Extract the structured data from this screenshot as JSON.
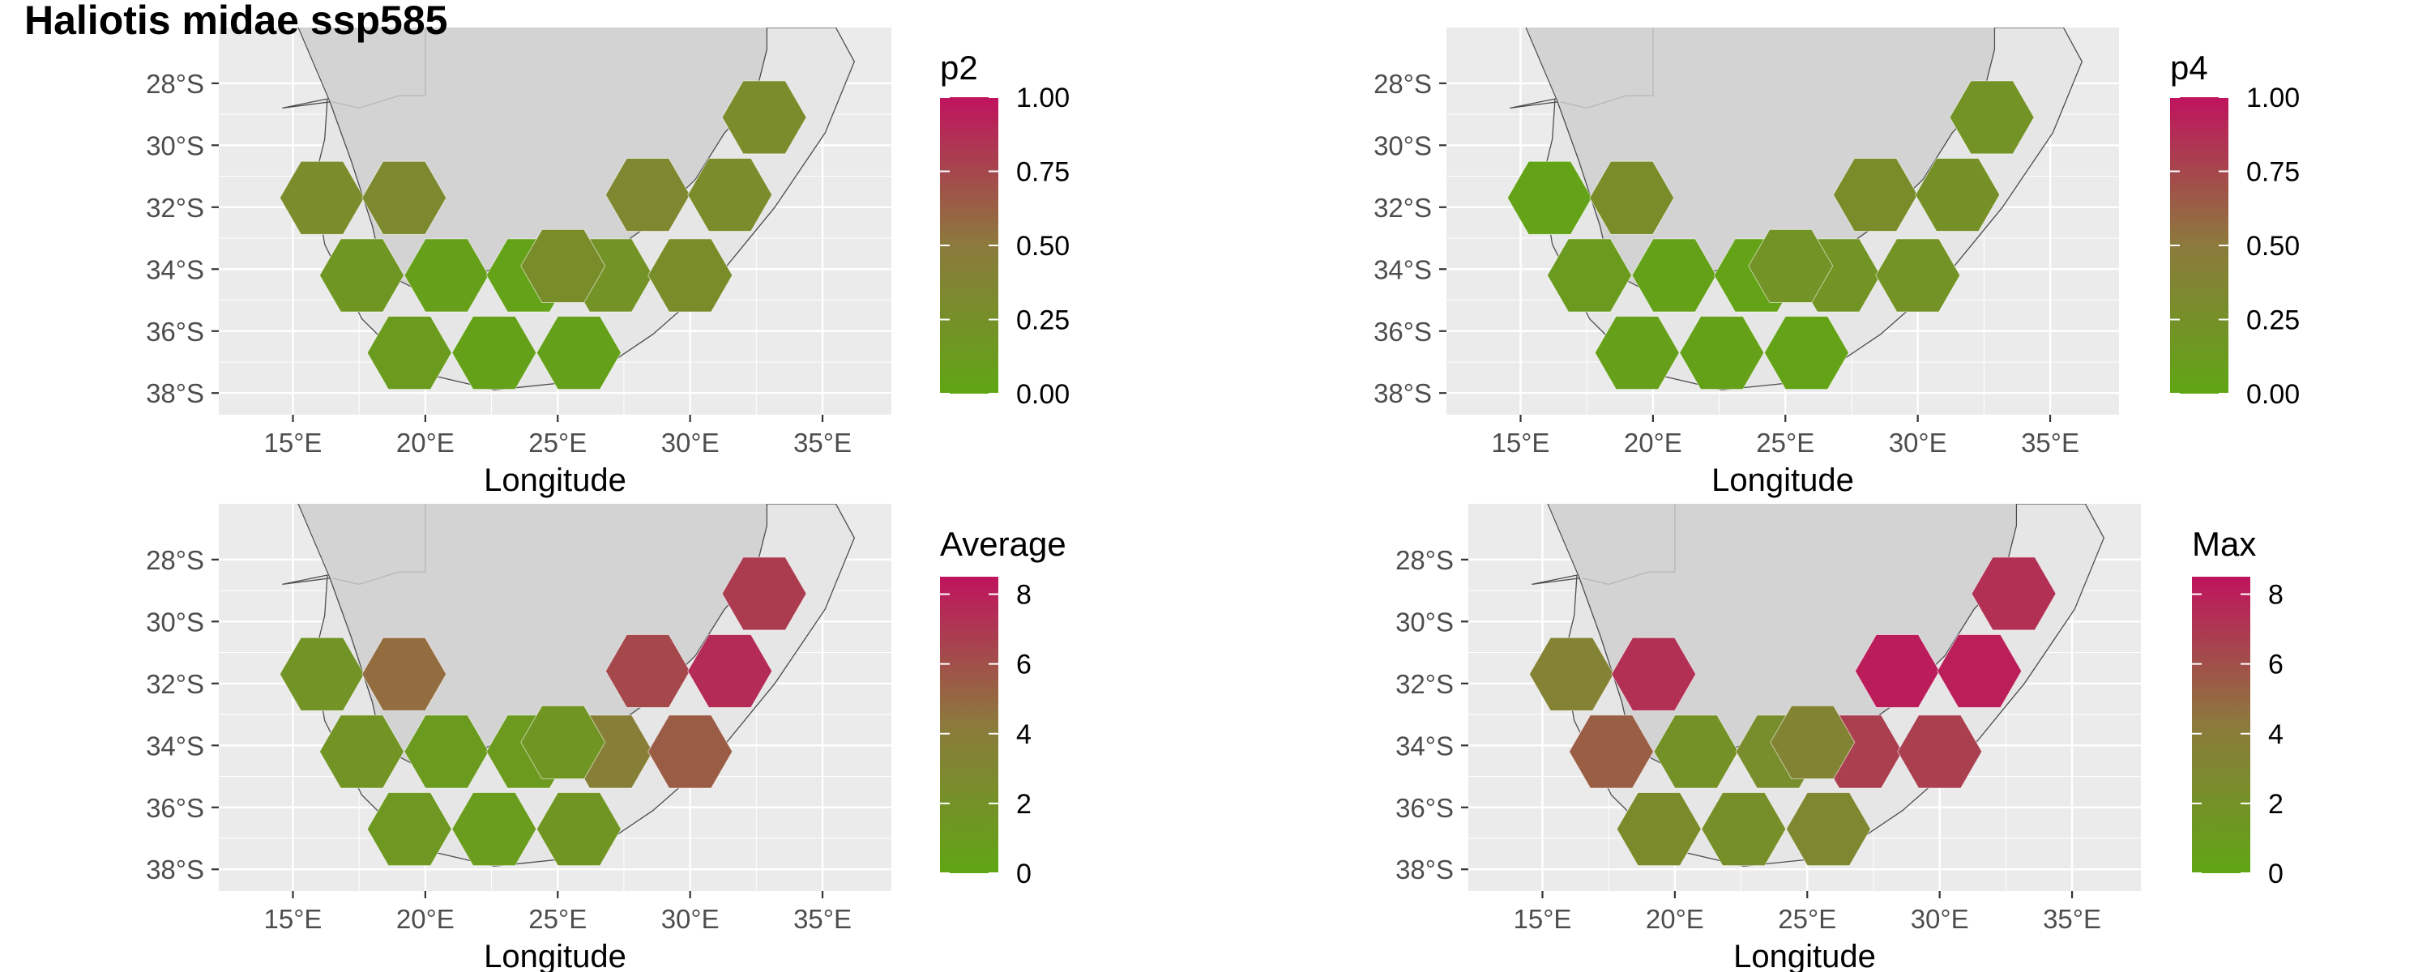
{
  "title": "Haliotis midae ssp585",
  "colors": {
    "low": "#5fa614",
    "mid": "#8c7a3c",
    "high": "#c0135e",
    "panel_bg": "#ebebeb",
    "grid": "#ffffff",
    "land": "#d3d3d3",
    "eez": "#e6e6e6",
    "outline": "#4d4d4d"
  },
  "panels": [
    {
      "id": "p2",
      "legend": {
        "title": "p2",
        "ticks": [
          "1.00",
          "0.75",
          "0.50",
          "0.25",
          "0.00"
        ],
        "max": 1
      },
      "values": [
        0.3,
        0.33,
        0.18,
        0.08,
        0.05,
        0.12,
        0.06,
        0.07,
        0.22,
        0.35,
        0.3,
        0.28,
        0.3,
        0.28
      ]
    },
    {
      "id": "p4",
      "legend": {
        "title": "p4",
        "ticks": [
          "1.00",
          "0.75",
          "0.50",
          "0.25",
          "0.00"
        ],
        "max": 1
      },
      "values": [
        0.05,
        0.28,
        0.12,
        0.06,
        0.05,
        0.08,
        0.06,
        0.05,
        0.2,
        0.28,
        0.25,
        0.22,
        0.22,
        0.22
      ]
    },
    {
      "id": "average",
      "legend": {
        "title": "Average",
        "ticks": [
          "8",
          "6",
          "4",
          "2",
          "0"
        ],
        "max": 8.5
      },
      "values": [
        1.8,
        4.8,
        1.7,
        1.1,
        1.2,
        1.4,
        1.0,
        1.6,
        3.8,
        6.3,
        7.5,
        5.5,
        6.8,
        1.6
      ]
    },
    {
      "id": "max",
      "legend": {
        "title": "Max",
        "ticks": [
          "8",
          "6",
          "4",
          "2",
          "0"
        ],
        "max": 8.5
      },
      "values": [
        3.5,
        7.3,
        5.4,
        2.0,
        2.4,
        2.6,
        2.2,
        3.0,
        6.7,
        8.1,
        8.0,
        6.7,
        7.3,
        3.3
      ]
    }
  ],
  "axes": {
    "x_ticks": [
      "15°E",
      "20°E",
      "25°E",
      "30°E",
      "35°E"
    ],
    "x_tick_values": [
      15,
      20,
      25,
      30,
      35
    ],
    "y_ticks": [
      "28°S",
      "30°S",
      "32°S",
      "34°S",
      "36°S",
      "38°S"
    ],
    "y_tick_values": [
      -28,
      -30,
      -32,
      -34,
      -36,
      -38
    ],
    "xlabel": "Longitude",
    "xlim": [
      12.2,
      37.6
    ],
    "ylim": [
      -38.7,
      -26.2
    ]
  },
  "hexes": [
    {
      "lon": 16.1,
      "lat": -31.7
    },
    {
      "lon": 19.2,
      "lat": -31.7
    },
    {
      "lon": 17.6,
      "lat": -34.2
    },
    {
      "lon": 20.8,
      "lat": -34.2
    },
    {
      "lon": 23.9,
      "lat": -34.2
    },
    {
      "lon": 19.4,
      "lat": -36.7
    },
    {
      "lon": 22.6,
      "lat": -36.7
    },
    {
      "lon": 25.8,
      "lat": -36.7
    },
    {
      "lon": 27.0,
      "lat": -34.2
    },
    {
      "lon": 28.4,
      "lat": -31.6
    },
    {
      "lon": 31.5,
      "lat": -31.6
    },
    {
      "lon": 30.0,
      "lat": -34.2
    },
    {
      "lon": 32.8,
      "lat": -29.1
    },
    {
      "lon": 25.2,
      "lat": -33.9
    }
  ]
}
